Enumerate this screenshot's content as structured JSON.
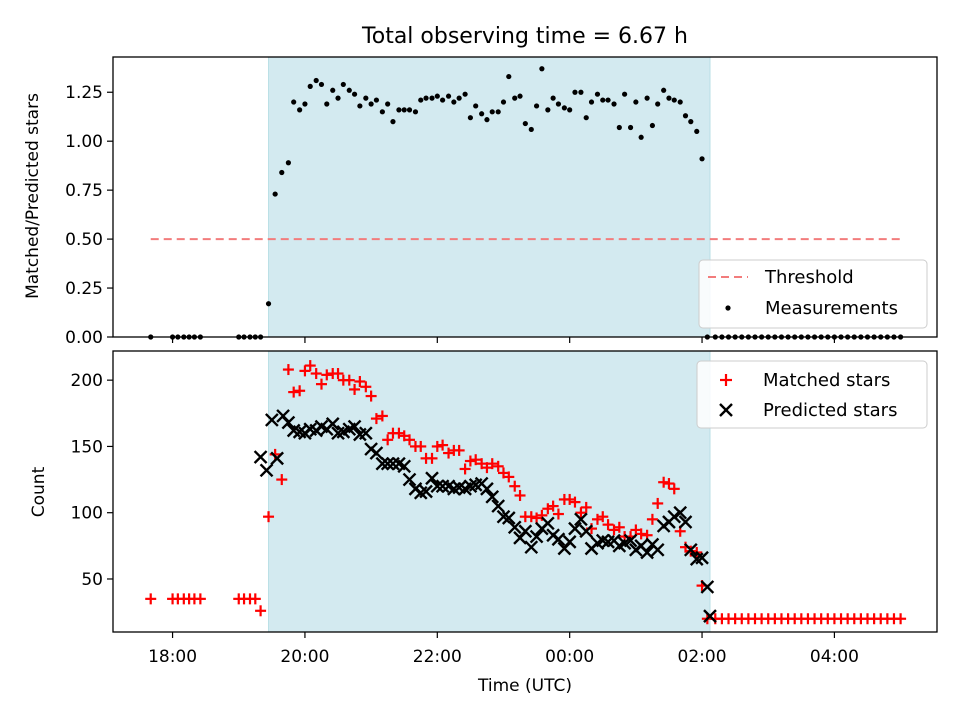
{
  "chart_data": [
    {
      "type": "scatter",
      "title": "Total observing time = 6.67 h",
      "xlabel": "",
      "ylabel": "Matched/Predicted stars",
      "ylim": [
        0,
        1.43
      ],
      "yticks": [
        "0.00",
        "0.25",
        "0.50",
        "0.75",
        "1.00",
        "1.25"
      ],
      "shaded_span_hours": [
        19.45,
        26.12
      ],
      "shade_color": "#d3eaf0",
      "legend_position": "lower-right",
      "series": [
        {
          "name": "Threshold",
          "kind": "dashed-line",
          "color": "#f27c7c",
          "x": [
            17.67,
            29.05
          ],
          "y": [
            0.5,
            0.5
          ]
        },
        {
          "name": "Measurements",
          "kind": "dots",
          "color": "#000000",
          "x": [
            17.67,
            18.0,
            18.08,
            18.17,
            18.25,
            18.33,
            18.42,
            19.0,
            19.08,
            19.17,
            19.25,
            19.33,
            19.45,
            19.55,
            19.65,
            19.75,
            19.83,
            19.92,
            20.0,
            20.08,
            20.17,
            20.25,
            20.33,
            20.42,
            20.5,
            20.58,
            20.67,
            20.75,
            20.83,
            20.92,
            21.0,
            21.08,
            21.17,
            21.25,
            21.33,
            21.42,
            21.5,
            21.58,
            21.67,
            21.75,
            21.83,
            21.92,
            22.0,
            22.08,
            22.17,
            22.25,
            22.33,
            22.42,
            22.5,
            22.58,
            22.67,
            22.75,
            22.83,
            22.92,
            23.0,
            23.08,
            23.17,
            23.25,
            23.33,
            23.42,
            23.5,
            23.58,
            23.67,
            23.75,
            23.83,
            23.92,
            24.0,
            24.08,
            24.17,
            24.25,
            24.33,
            24.42,
            24.5,
            24.58,
            24.67,
            24.75,
            24.83,
            24.92,
            25.0,
            25.08,
            25.17,
            25.25,
            25.33,
            25.42,
            25.5,
            25.58,
            25.67,
            25.75,
            25.83,
            25.92,
            26.0,
            26.08,
            26.2,
            26.3,
            26.4,
            26.5,
            26.6,
            26.7,
            26.8,
            26.9,
            27.0,
            27.1,
            27.2,
            27.3,
            27.4,
            27.5,
            27.6,
            27.7,
            27.8,
            27.9,
            28.0,
            28.1,
            28.2,
            28.3,
            28.4,
            28.5,
            28.6,
            28.7,
            28.8,
            28.9,
            29.0
          ],
          "y": [
            0.0,
            0.0,
            0.0,
            0.0,
            0.0,
            0.0,
            0.0,
            0.0,
            0.0,
            0.0,
            0.0,
            0.0,
            0.17,
            0.73,
            0.84,
            0.89,
            1.2,
            1.16,
            1.19,
            1.28,
            1.31,
            1.29,
            1.19,
            1.26,
            1.22,
            1.29,
            1.26,
            1.24,
            1.18,
            1.22,
            1.19,
            1.21,
            1.15,
            1.19,
            1.1,
            1.16,
            1.16,
            1.16,
            1.15,
            1.21,
            1.22,
            1.22,
            1.23,
            1.21,
            1.23,
            1.2,
            1.22,
            1.24,
            1.12,
            1.18,
            1.14,
            1.11,
            1.15,
            1.15,
            1.2,
            1.33,
            1.22,
            1.23,
            1.09,
            1.06,
            1.18,
            1.37,
            1.16,
            1.22,
            1.19,
            1.17,
            1.16,
            1.25,
            1.25,
            1.12,
            1.2,
            1.24,
            1.21,
            1.21,
            1.19,
            1.07,
            1.24,
            1.07,
            1.2,
            1.02,
            1.22,
            1.08,
            1.19,
            1.26,
            1.22,
            1.21,
            1.2,
            1.13,
            1.1,
            1.05,
            0.91,
            0.0,
            0.0,
            0.0,
            0.0,
            0.0,
            0.0,
            0.0,
            0.0,
            0.0,
            0.0,
            0.0,
            0.0,
            0.0,
            0.0,
            0.0,
            0.0,
            0.0,
            0.0,
            0.0,
            0.0,
            0.0,
            0.0,
            0.0,
            0.0,
            0.0,
            0.0,
            0.0,
            0.0,
            0.0,
            0.0
          ]
        }
      ]
    },
    {
      "type": "scatter",
      "title": "",
      "xlabel": "Time (UTC)",
      "ylabel": "Count",
      "xlim_hours": [
        17.1,
        29.55
      ],
      "ylim": [
        10,
        222
      ],
      "yticks": [
        "50",
        "100",
        "150",
        "200"
      ],
      "xticks": [
        "18:00",
        "20:00",
        "22:00",
        "00:00",
        "02:00",
        "04:00"
      ],
      "shaded_span_hours": [
        19.45,
        26.12
      ],
      "shade_color": "#d3eaf0",
      "legend_position": "upper-right",
      "series": [
        {
          "name": "Matched stars",
          "kind": "plus",
          "color": "#ff0000",
          "x": [
            17.67,
            18.0,
            18.08,
            18.17,
            18.25,
            18.33,
            18.42,
            19.0,
            19.08,
            19.17,
            19.25,
            19.33,
            19.45,
            19.55,
            19.65,
            19.75,
            19.83,
            19.92,
            20.0,
            20.08,
            20.17,
            20.25,
            20.33,
            20.42,
            20.5,
            20.58,
            20.67,
            20.75,
            20.83,
            20.92,
            21.0,
            21.08,
            21.17,
            21.25,
            21.33,
            21.42,
            21.5,
            21.58,
            21.67,
            21.75,
            21.83,
            21.92,
            22.0,
            22.08,
            22.17,
            22.25,
            22.33,
            22.42,
            22.5,
            22.58,
            22.67,
            22.75,
            22.83,
            22.92,
            23.0,
            23.08,
            23.17,
            23.25,
            23.33,
            23.42,
            23.5,
            23.58,
            23.67,
            23.75,
            23.83,
            23.92,
            24.0,
            24.08,
            24.17,
            24.25,
            24.33,
            24.42,
            24.5,
            24.58,
            24.67,
            24.75,
            24.83,
            24.92,
            25.0,
            25.08,
            25.17,
            25.25,
            25.33,
            25.42,
            25.5,
            25.58,
            25.67,
            25.75,
            25.83,
            25.92,
            26.0,
            26.08,
            26.2,
            26.3,
            26.4,
            26.5,
            26.6,
            26.7,
            26.8,
            26.9,
            27.0,
            27.1,
            27.2,
            27.3,
            27.4,
            27.5,
            27.6,
            27.7,
            27.8,
            27.9,
            28.0,
            28.1,
            28.2,
            28.3,
            28.4,
            28.5,
            28.6,
            28.7,
            28.8,
            28.9,
            29.0
          ],
          "y": [
            35,
            35,
            35,
            35,
            35,
            35,
            35,
            35,
            35,
            35,
            35,
            26,
            97,
            144,
            125,
            208,
            191,
            192,
            207,
            211,
            205,
            197,
            204,
            205,
            205,
            200,
            200,
            193,
            199,
            195,
            188,
            171,
            173,
            155,
            160,
            160,
            158,
            155,
            150,
            150,
            141,
            141,
            150,
            151,
            145,
            147,
            147,
            133,
            139,
            140,
            137,
            134,
            137,
            135,
            130,
            127,
            120,
            113,
            97,
            97,
            96,
            98,
            103,
            105,
            99,
            110,
            110,
            108,
            100,
            104,
            88,
            95,
            97,
            91,
            87,
            89,
            82,
            82,
            87,
            84,
            83,
            95,
            107,
            123,
            122,
            118,
            86,
            74,
            71,
            70,
            45,
            20,
            20,
            20,
            20,
            20,
            20,
            20,
            20,
            20,
            20,
            20,
            20,
            20,
            20,
            20,
            20,
            20,
            20,
            20,
            20,
            20,
            20,
            20,
            20,
            20,
            20,
            20,
            20,
            20,
            20
          ]
        },
        {
          "name": "Predicted stars",
          "kind": "x",
          "color": "#000000",
          "x": [
            19.33,
            19.42,
            19.5,
            19.58,
            19.67,
            19.75,
            19.83,
            19.92,
            20.0,
            20.08,
            20.17,
            20.25,
            20.33,
            20.42,
            20.5,
            20.58,
            20.67,
            20.75,
            20.83,
            20.92,
            21.0,
            21.08,
            21.17,
            21.25,
            21.33,
            21.42,
            21.5,
            21.58,
            21.67,
            21.75,
            21.83,
            21.92,
            22.0,
            22.08,
            22.17,
            22.25,
            22.33,
            22.42,
            22.5,
            22.58,
            22.67,
            22.75,
            22.83,
            22.92,
            23.0,
            23.08,
            23.17,
            23.25,
            23.33,
            23.42,
            23.5,
            23.58,
            23.67,
            23.75,
            23.83,
            23.92,
            24.0,
            24.08,
            24.17,
            24.25,
            24.33,
            24.42,
            24.5,
            24.58,
            24.67,
            24.75,
            24.83,
            24.92,
            25.0,
            25.08,
            25.17,
            25.25,
            25.33,
            25.42,
            25.5,
            25.58,
            25.67,
            25.75,
            25.83,
            25.92,
            26.0,
            26.08,
            26.12
          ],
          "y": [
            142,
            132,
            170,
            141,
            173,
            168,
            162,
            161,
            160,
            163,
            162,
            165,
            163,
            167,
            160,
            161,
            163,
            165,
            159,
            160,
            148,
            145,
            137,
            137,
            137,
            137,
            135,
            125,
            118,
            115,
            116,
            126,
            120,
            120,
            120,
            118,
            119,
            118,
            120,
            121,
            122,
            118,
            112,
            105,
            97,
            96,
            89,
            81,
            86,
            74,
            82,
            88,
            92,
            83,
            80,
            73,
            78,
            88,
            95,
            86,
            73,
            77,
            79,
            78,
            79,
            75,
            77,
            79,
            72,
            75,
            70,
            76,
            72,
            90,
            93,
            97,
            100,
            93,
            72,
            65,
            66,
            44,
            22
          ]
        }
      ]
    }
  ]
}
